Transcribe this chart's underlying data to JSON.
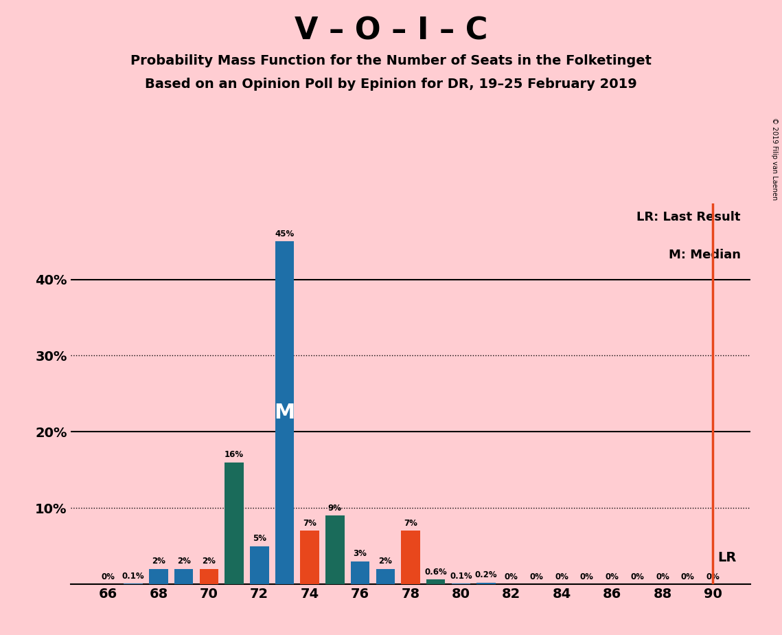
{
  "title": "V – O – I – C",
  "subtitle1": "Probability Mass Function for the Number of Seats in the Folketinget",
  "subtitle2": "Based on an Opinion Poll by Epinion for DR, 19–25 February 2019",
  "background_color": "#FFCDD2",
  "seats": [
    66,
    67,
    68,
    69,
    70,
    71,
    72,
    73,
    74,
    75,
    76,
    77,
    78,
    79,
    80,
    81,
    82,
    83,
    84,
    85,
    86,
    87,
    88,
    89,
    90
  ],
  "values": [
    0.0,
    0.1,
    2.0,
    2.0,
    2.0,
    16.0,
    5.0,
    45.0,
    7.0,
    9.0,
    3.0,
    2.0,
    7.0,
    0.6,
    0.1,
    0.2,
    0.0,
    0.0,
    0.0,
    0.0,
    0.0,
    0.0,
    0.0,
    0.0,
    0.0
  ],
  "colors": [
    "#1E6FA8",
    "#1E6FA8",
    "#1E6FA8",
    "#1E6FA8",
    "#E8471C",
    "#1A6B5A",
    "#1E6FA8",
    "#1E6FA8",
    "#E8471C",
    "#1A6B5A",
    "#1E6FA8",
    "#1E6FA8",
    "#E8471C",
    "#1A6B5A",
    "#1E6FA8",
    "#1E6FA8",
    "#1E6FA8",
    "#1E6FA8",
    "#1E6FA8",
    "#1E6FA8",
    "#1E6FA8",
    "#1E6FA8",
    "#1E6FA8",
    "#1E6FA8",
    "#1E6FA8"
  ],
  "median_seat": 73,
  "lr_seat": 90,
  "lr_label": "LR",
  "lr_legend": "LR: Last Result",
  "m_legend": "M: Median",
  "solid_lines": [
    20,
    40
  ],
  "dotted_lines": [
    10,
    30
  ],
  "ylim": [
    0,
    50
  ],
  "copyright": "© 2019 Filip van Laenen"
}
